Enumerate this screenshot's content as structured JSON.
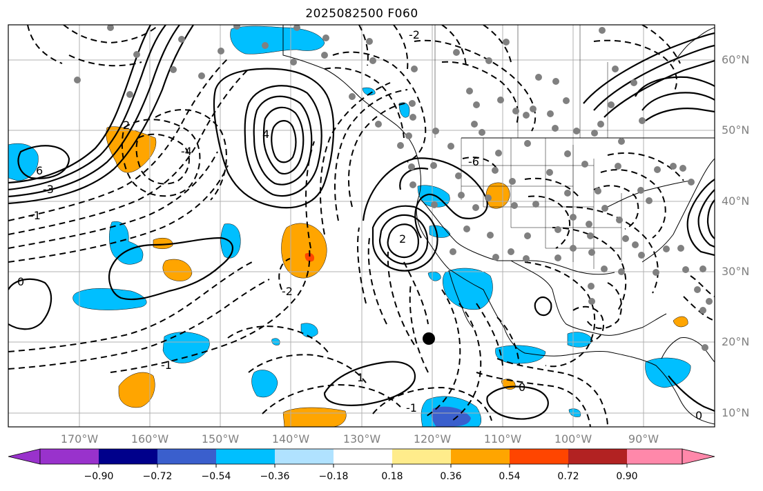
{
  "title": "2025082500 F060",
  "lat_labels": [
    "60°N",
    "50°N",
    "40°N",
    "30°N",
    "20°N",
    "10°N"
  ],
  "lon_labels": [
    "170°W",
    "160°W",
    "150°W",
    "140°W",
    "130°W",
    "120°W",
    "110°W",
    "100°W",
    "90°W"
  ],
  "colorbar": {
    "ticks": [
      "−0.90",
      "−0.72",
      "−0.54",
      "−0.36",
      "−0.18",
      "0.18",
      "0.36",
      "0.54",
      "0.72",
      "0.90"
    ],
    "colors": [
      "#9932cc",
      "#00008b",
      "#3a5fcd",
      "#00bfff",
      "#b0e2ff",
      "#ffffff",
      "#ffec8b",
      "#ffa500",
      "#ff4500",
      "#b22222",
      "#ff88aa"
    ]
  },
  "contour_labels": [
    "-2",
    "4",
    "6",
    "-3",
    "-1",
    "-4",
    "2",
    "0",
    "-2",
    "-1",
    "1",
    "-6",
    "2",
    "0",
    "-1",
    "0"
  ],
  "colors": {
    "positive_fill": "#ffa500",
    "negative_fill": "#00bfff",
    "station": "#808080",
    "grid": "#b0b0b0"
  }
}
